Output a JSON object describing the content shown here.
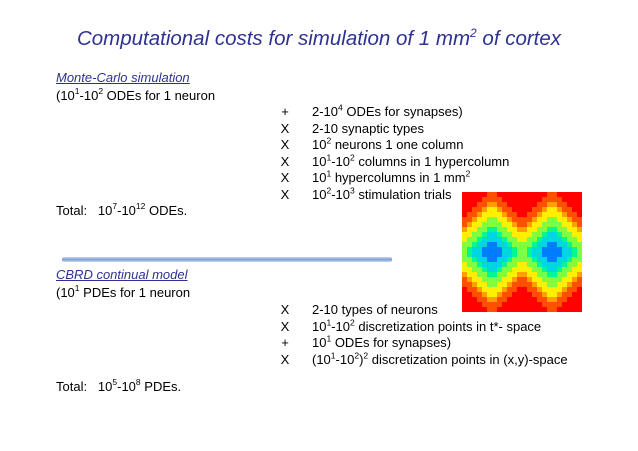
{
  "title": {
    "pre": "Computational costs for simulation of 1 mm",
    "sup": "2",
    "post": " of cortex"
  },
  "mc": {
    "heading": "Monte-Carlo simulation",
    "line": {
      "a": "(10",
      "s1": "1",
      "b": "-10",
      "s2": "2",
      "c": " ODEs for 1 neuron"
    },
    "items": [
      {
        "op": "+",
        "a": "2-10",
        "s1": "4",
        "b": " ODEs for synapses)",
        "s2": "",
        "c": ""
      },
      {
        "op": "X",
        "a": "2-10 synaptic types",
        "s1": "",
        "b": "",
        "s2": "",
        "c": ""
      },
      {
        "op": "X",
        "a": "10",
        "s1": "2",
        "b": " neurons 1 one column",
        "s2": "",
        "c": ""
      },
      {
        "op": "X",
        "a": "10",
        "s1": "1",
        "b": "-10",
        "s2": "2",
        "c": " columns in 1 hypercolumn"
      },
      {
        "op": "X",
        "a": "10",
        "s1": "1",
        "b": " hypercolumns in 1 mm",
        "s2": "2",
        "c": ""
      },
      {
        "op": "X",
        "a": "10",
        "s1": "2",
        "b": "-10",
        "s2": "3",
        "c": " stimulation trials"
      }
    ],
    "total": {
      "label": "Total:",
      "a": "10",
      "s1": "7",
      "b": "-10",
      "s2": "12",
      "c": " ODEs."
    }
  },
  "cbrd": {
    "heading": "CBRD continual model",
    "line": {
      "a": "(10",
      "s1": "1",
      "b": " PDEs for 1 neuron",
      "s2": "",
      "c": ""
    },
    "items": [
      {
        "op": "X",
        "a": "2-10 types of neurons",
        "s1": "",
        "b": "",
        "s2": "",
        "c": ""
      },
      {
        "op": "X",
        "a": "10",
        "s1": "1",
        "b": "-10",
        "s2": "2",
        "c": " discretization points in t*- space"
      },
      {
        "op": "+",
        "a": "10",
        "s1": "1",
        "b": " ODEs for synapses)",
        "s2": "",
        "c": ""
      },
      {
        "op": "X",
        "a": "(10",
        "s1": "1",
        "b": "-10",
        "s2": "2",
        "c": ")",
        "s3": "2",
        "d": " discretization points in (x,y)-space"
      }
    ],
    "total": {
      "label": "Total:",
      "a": "10",
      "s1": "5",
      "b": "-10",
      "s2": "8",
      "c": " PDEs."
    }
  },
  "colors": {
    "title": "#2e3192",
    "heading": "#2e3192",
    "divider": "#7e9ed6"
  },
  "figure": {
    "name": "color-contour-image",
    "palette": [
      "#0000ff",
      "#00c8ff",
      "#00ff80",
      "#ffff00",
      "#ff8000",
      "#ff0000"
    ]
  }
}
